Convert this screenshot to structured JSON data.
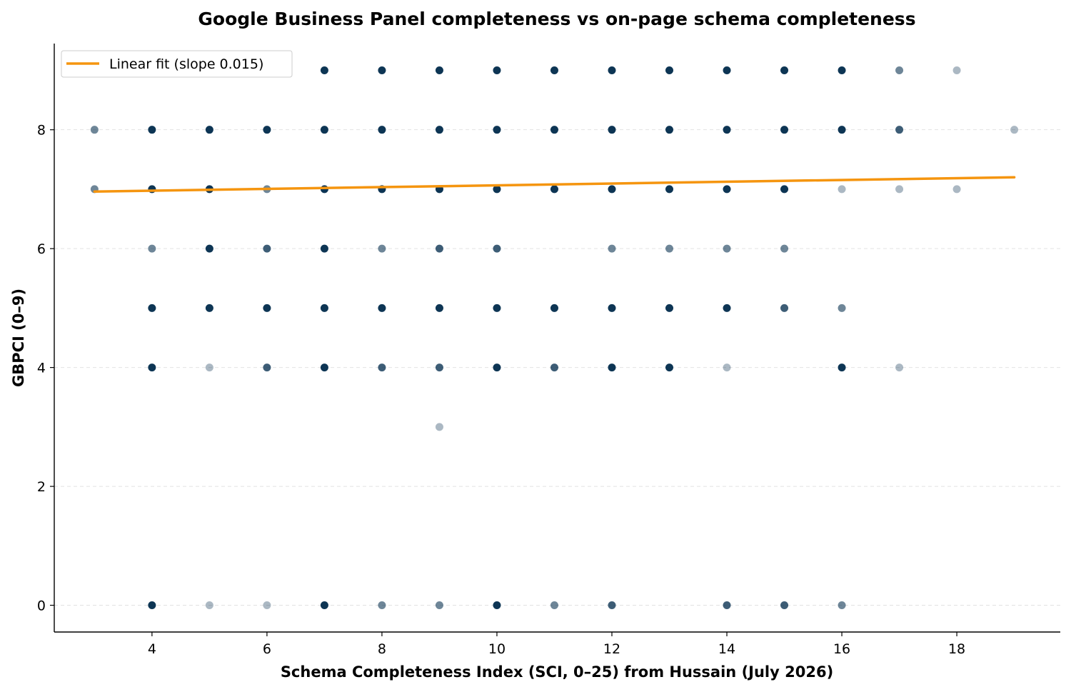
{
  "chart_data": {
    "type": "scatter",
    "title": "Google Business Panel completeness vs on-page schema completeness",
    "xlabel": "Schema Completeness Index (SCI, 0–25) from Hussain (July 2026)",
    "ylabel": "GBPCI (0–9)",
    "xlim": [
      2.3,
      19.8
    ],
    "ylim": [
      -0.45,
      9.45
    ],
    "xticks": [
      4,
      6,
      8,
      10,
      12,
      14,
      16,
      18
    ],
    "yticks": [
      0,
      2,
      4,
      6,
      8
    ],
    "grid": "horizontal dashed",
    "legend_position": "top-left",
    "point_color": "#0d3554",
    "point_opacity_levels": "darker = more observations at that point",
    "series": [
      {
        "type": "scatter",
        "points": [
          {
            "x": 3,
            "y": 8,
            "o": 0.6
          },
          {
            "x": 3,
            "y": 7,
            "o": 0.6
          },
          {
            "x": 4,
            "y": 9,
            "o": 0.35
          },
          {
            "x": 4,
            "y": 8,
            "o": 1
          },
          {
            "x": 4,
            "y": 7,
            "o": 1
          },
          {
            "x": 4,
            "y": 6,
            "o": 0.6
          },
          {
            "x": 4,
            "y": 5,
            "o": 1
          },
          {
            "x": 4,
            "y": 4,
            "o": 1
          },
          {
            "x": 4,
            "y": 0,
            "o": 1
          },
          {
            "x": 5,
            "y": 9,
            "o": 0.35
          },
          {
            "x": 5,
            "y": 8,
            "o": 1
          },
          {
            "x": 5,
            "y": 7,
            "o": 1
          },
          {
            "x": 5,
            "y": 6,
            "o": 1
          },
          {
            "x": 5,
            "y": 5,
            "o": 1
          },
          {
            "x": 5,
            "y": 4,
            "o": 0.35
          },
          {
            "x": 5,
            "y": 0,
            "o": 0.35
          },
          {
            "x": 6,
            "y": 9,
            "o": 0.35
          },
          {
            "x": 6,
            "y": 8,
            "o": 1
          },
          {
            "x": 6,
            "y": 7,
            "o": 0.6
          },
          {
            "x": 6,
            "y": 6,
            "o": 0.8
          },
          {
            "x": 6,
            "y": 5,
            "o": 1
          },
          {
            "x": 6,
            "y": 4,
            "o": 0.8
          },
          {
            "x": 6,
            "y": 0,
            "o": 0.35
          },
          {
            "x": 7,
            "y": 9,
            "o": 1
          },
          {
            "x": 7,
            "y": 8,
            "o": 1
          },
          {
            "x": 7,
            "y": 7,
            "o": 1
          },
          {
            "x": 7,
            "y": 6,
            "o": 1
          },
          {
            "x": 7,
            "y": 5,
            "o": 1
          },
          {
            "x": 7,
            "y": 4,
            "o": 1
          },
          {
            "x": 7,
            "y": 0,
            "o": 1
          },
          {
            "x": 8,
            "y": 9,
            "o": 1
          },
          {
            "x": 8,
            "y": 8,
            "o": 1
          },
          {
            "x": 8,
            "y": 7,
            "o": 1
          },
          {
            "x": 8,
            "y": 6,
            "o": 0.6
          },
          {
            "x": 8,
            "y": 5,
            "o": 1
          },
          {
            "x": 8,
            "y": 4,
            "o": 0.8
          },
          {
            "x": 8,
            "y": 0,
            "o": 0.6
          },
          {
            "x": 9,
            "y": 9,
            "o": 1
          },
          {
            "x": 9,
            "y": 8,
            "o": 1
          },
          {
            "x": 9,
            "y": 7,
            "o": 1
          },
          {
            "x": 9,
            "y": 6,
            "o": 0.8
          },
          {
            "x": 9,
            "y": 5,
            "o": 1
          },
          {
            "x": 9,
            "y": 4,
            "o": 0.8
          },
          {
            "x": 9,
            "y": 3,
            "o": 0.35
          },
          {
            "x": 9,
            "y": 0,
            "o": 0.6
          },
          {
            "x": 10,
            "y": 9,
            "o": 1
          },
          {
            "x": 10,
            "y": 8,
            "o": 1
          },
          {
            "x": 10,
            "y": 7,
            "o": 1
          },
          {
            "x": 10,
            "y": 6,
            "o": 0.8
          },
          {
            "x": 10,
            "y": 5,
            "o": 1
          },
          {
            "x": 10,
            "y": 4,
            "o": 1
          },
          {
            "x": 10,
            "y": 0,
            "o": 1
          },
          {
            "x": 11,
            "y": 9,
            "o": 1
          },
          {
            "x": 11,
            "y": 8,
            "o": 1
          },
          {
            "x": 11,
            "y": 7,
            "o": 1
          },
          {
            "x": 11,
            "y": 5,
            "o": 1
          },
          {
            "x": 11,
            "y": 4,
            "o": 0.8
          },
          {
            "x": 11,
            "y": 0,
            "o": 0.6
          },
          {
            "x": 12,
            "y": 9,
            "o": 1
          },
          {
            "x": 12,
            "y": 8,
            "o": 1
          },
          {
            "x": 12,
            "y": 7,
            "o": 1
          },
          {
            "x": 12,
            "y": 6,
            "o": 0.6
          },
          {
            "x": 12,
            "y": 5,
            "o": 1
          },
          {
            "x": 12,
            "y": 4,
            "o": 1
          },
          {
            "x": 12,
            "y": 0,
            "o": 0.8
          },
          {
            "x": 13,
            "y": 9,
            "o": 1
          },
          {
            "x": 13,
            "y": 8,
            "o": 1
          },
          {
            "x": 13,
            "y": 7,
            "o": 1
          },
          {
            "x": 13,
            "y": 6,
            "o": 0.6
          },
          {
            "x": 13,
            "y": 5,
            "o": 1
          },
          {
            "x": 13,
            "y": 4,
            "o": 1
          },
          {
            "x": 14,
            "y": 9,
            "o": 1
          },
          {
            "x": 14,
            "y": 8,
            "o": 1
          },
          {
            "x": 14,
            "y": 7,
            "o": 1
          },
          {
            "x": 14,
            "y": 6,
            "o": 0.6
          },
          {
            "x": 14,
            "y": 5,
            "o": 1
          },
          {
            "x": 14,
            "y": 4,
            "o": 0.35
          },
          {
            "x": 14,
            "y": 0,
            "o": 0.8
          },
          {
            "x": 15,
            "y": 9,
            "o": 1
          },
          {
            "x": 15,
            "y": 8,
            "o": 1
          },
          {
            "x": 15,
            "y": 7,
            "o": 1
          },
          {
            "x": 15,
            "y": 6,
            "o": 0.6
          },
          {
            "x": 15,
            "y": 5,
            "o": 0.8
          },
          {
            "x": 15,
            "y": 0,
            "o": 0.8
          },
          {
            "x": 16,
            "y": 9,
            "o": 1
          },
          {
            "x": 16,
            "y": 8,
            "o": 1
          },
          {
            "x": 16,
            "y": 7,
            "o": 0.35
          },
          {
            "x": 16,
            "y": 5,
            "o": 0.6
          },
          {
            "x": 16,
            "y": 4,
            "o": 1
          },
          {
            "x": 16,
            "y": 0,
            "o": 0.6
          },
          {
            "x": 17,
            "y": 9,
            "o": 0.6
          },
          {
            "x": 17,
            "y": 8,
            "o": 0.8
          },
          {
            "x": 17,
            "y": 7,
            "o": 0.35
          },
          {
            "x": 17,
            "y": 4,
            "o": 0.35
          },
          {
            "x": 18,
            "y": 9,
            "o": 0.35
          },
          {
            "x": 18,
            "y": 7,
            "o": 0.35
          },
          {
            "x": 19,
            "y": 8,
            "o": 0.35
          }
        ]
      },
      {
        "name": "Linear fit  (slope 0.015)",
        "type": "line",
        "color": "#f5950f",
        "x": [
          3,
          19
        ],
        "y": [
          6.96,
          7.2
        ]
      }
    ]
  }
}
